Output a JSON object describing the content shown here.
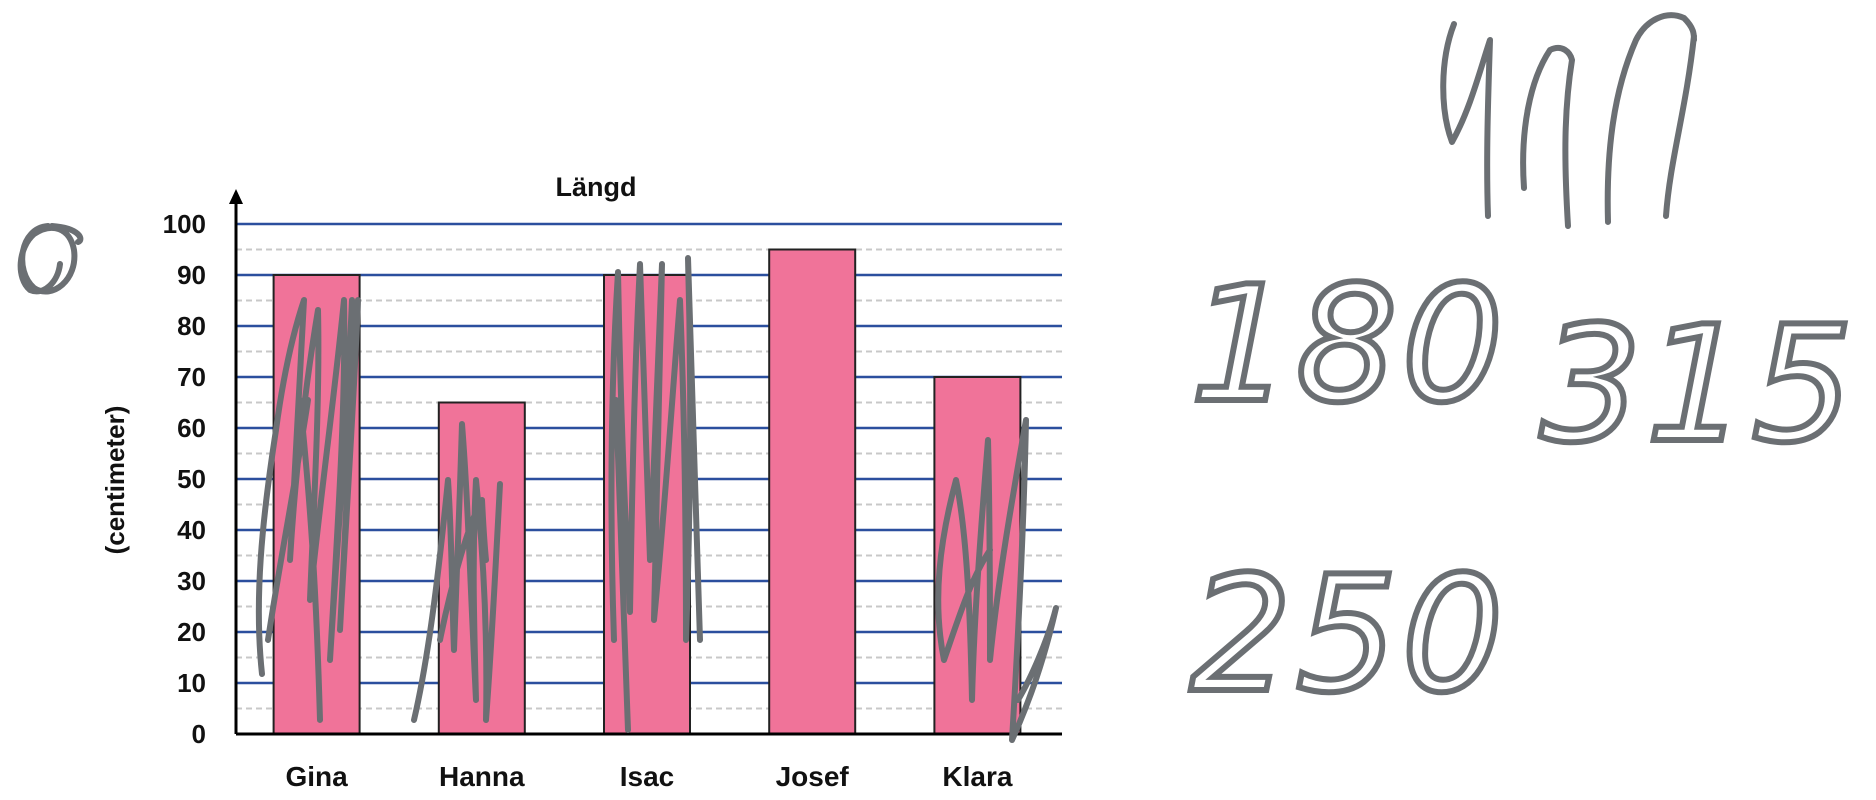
{
  "chart_data": {
    "type": "bar",
    "title": "Längd",
    "xlabel": "",
    "ylabel": "(centimeter)",
    "categories": [
      "Gina",
      "Hanna",
      "Isac",
      "Josef",
      "Klara"
    ],
    "values": [
      90,
      65,
      90,
      95,
      70
    ],
    "ylim": [
      0,
      100
    ],
    "yticks": [
      "0",
      "10",
      "20",
      "30",
      "40",
      "50",
      "60",
      "70",
      "80",
      "90",
      "100"
    ],
    "grid": true,
    "bar_color": "#f07399",
    "bar_border_color": "#222222",
    "major_grid_color": "#2b4f9e",
    "minor_grid_color": "#c8c8c8"
  },
  "handwriting": {
    "ink_color": "#6b6f73",
    "marks": [
      "180",
      "315",
      "250"
    ]
  }
}
